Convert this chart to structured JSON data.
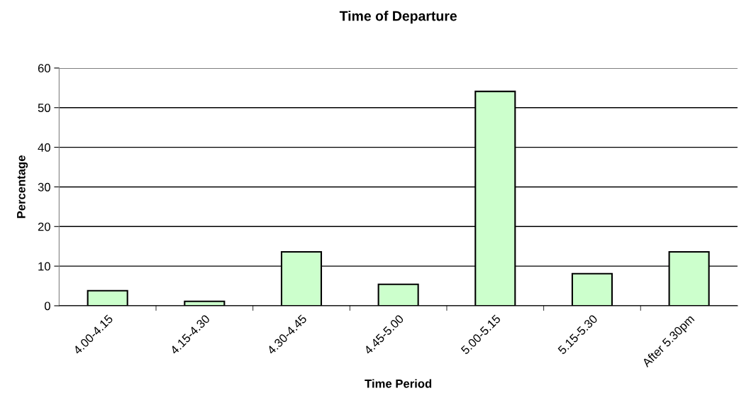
{
  "chart_data": {
    "type": "bar",
    "title": "Time of Departure",
    "xlabel": "Time Period",
    "ylabel": "Percentage",
    "categories": [
      "4.00-4.15",
      "4.15-4.30",
      "4.30-4.45",
      "4.45-5.00",
      "5.00-5.15",
      "5.15-5.30",
      "After 5.30pm"
    ],
    "values": [
      3.8,
      1.1,
      13.6,
      5.4,
      54.1,
      8.1,
      13.6
    ],
    "color": "#ccffcc",
    "ylim": [
      0,
      60
    ],
    "yticks": [
      0,
      10,
      20,
      30,
      40,
      50,
      60
    ],
    "grid": "y",
    "legend": false
  }
}
